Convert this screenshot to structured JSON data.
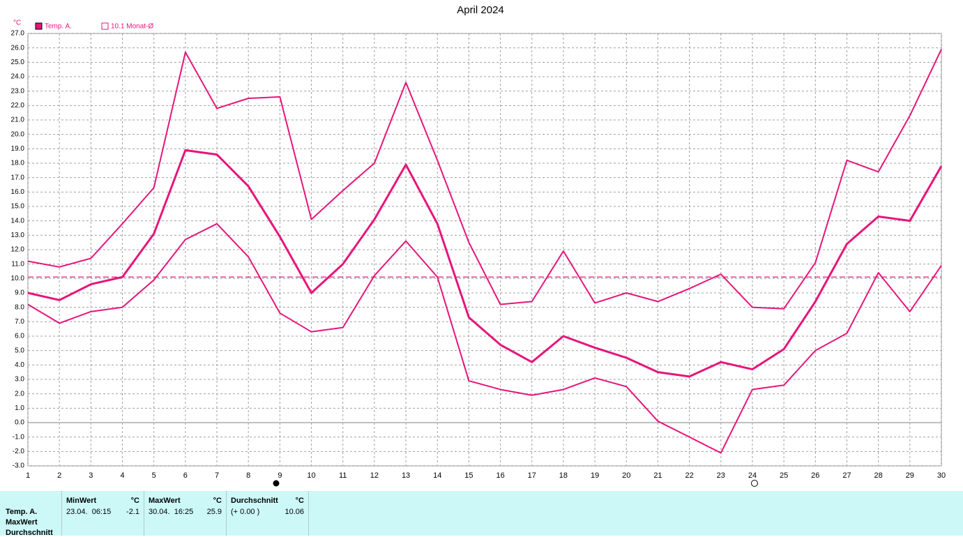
{
  "chart_data": {
    "type": "line",
    "title": "April 2024",
    "y_unit": "°C",
    "x": [
      1,
      2,
      3,
      4,
      5,
      6,
      7,
      8,
      9,
      10,
      11,
      12,
      13,
      14,
      15,
      16,
      17,
      18,
      19,
      20,
      21,
      22,
      23,
      24,
      25,
      26,
      27,
      28,
      29,
      30
    ],
    "xlim": [
      1,
      30
    ],
    "xticks": [
      1,
      2,
      3,
      4,
      5,
      6,
      7,
      8,
      9,
      10,
      11,
      12,
      13,
      14,
      15,
      16,
      17,
      18,
      19,
      20,
      21,
      22,
      23,
      24,
      25,
      26,
      27,
      28,
      29,
      30
    ],
    "ylim": [
      -3,
      27
    ],
    "yticks": [
      {
        "value": -3,
        "label": "-3.0"
      },
      {
        "value": -2,
        "label": "-2.0"
      },
      {
        "value": -1,
        "label": "-1.0"
      },
      {
        "value": 0,
        "label": "0.0"
      },
      {
        "value": 1,
        "label": "1.0"
      },
      {
        "value": 2,
        "label": "2.0"
      },
      {
        "value": 3,
        "label": "3.0"
      },
      {
        "value": 4,
        "label": "4.0"
      },
      {
        "value": 5,
        "label": "5.0"
      },
      {
        "value": 6,
        "label": "6.0"
      },
      {
        "value": 7,
        "label": "7.0"
      },
      {
        "value": 8,
        "label": "8.0"
      },
      {
        "value": 9,
        "label": "9.0"
      },
      {
        "value": 10,
        "label": "10.0"
      },
      {
        "value": 11,
        "label": "11.0"
      },
      {
        "value": 12,
        "label": "12.0"
      },
      {
        "value": 13,
        "label": "13.0"
      },
      {
        "value": 14,
        "label": "14.0"
      },
      {
        "value": 15,
        "label": "15.0"
      },
      {
        "value": 16,
        "label": "16.0"
      },
      {
        "value": 17,
        "label": "17.0"
      },
      {
        "value": 18,
        "label": "18.0"
      },
      {
        "value": 19,
        "label": "19.0"
      },
      {
        "value": 20,
        "label": "20.0"
      },
      {
        "value": 21,
        "label": "21.0"
      },
      {
        "value": 22,
        "label": "22.0"
      },
      {
        "value": 23,
        "label": "23.0"
      },
      {
        "value": 24,
        "label": "24.0"
      },
      {
        "value": 25,
        "label": "25.0"
      },
      {
        "value": 26,
        "label": "26.0"
      },
      {
        "value": 27,
        "label": "27.0"
      }
    ],
    "grid": true,
    "series": [
      {
        "name": "Temp. A.",
        "color": "#e6157a",
        "values": [
          9.0,
          8.5,
          9.6,
          10.1,
          13.1,
          18.9,
          18.6,
          16.4,
          12.9,
          9.0,
          11.0,
          14.1,
          17.9,
          13.8,
          7.3,
          5.4,
          4.2,
          6.0,
          5.2,
          4.5,
          3.5,
          3.2,
          4.2,
          3.7,
          5.1,
          8.4,
          12.4,
          14.3,
          14.0,
          17.8
        ]
      },
      {
        "color": "#e6157a",
        "values": [
          11.2,
          10.8,
          11.4,
          13.8,
          16.3,
          25.7,
          21.8,
          22.5,
          22.6,
          14.1,
          16.1,
          18.0,
          23.6,
          18.2,
          12.5,
          8.2,
          8.4,
          11.9,
          8.3,
          9.0,
          8.4,
          9.3,
          10.3,
          8.0,
          7.9,
          11.1,
          18.2,
          17.4,
          21.3,
          25.9
        ]
      },
      {
        "color": "#e6157a",
        "values": [
          8.2,
          6.9,
          7.7,
          8.0,
          9.9,
          12.7,
          13.8,
          11.5,
          7.6,
          6.3,
          6.6,
          10.2,
          12.6,
          10.1,
          2.9,
          2.3,
          1.9,
          2.3,
          3.1,
          2.5,
          0.1,
          -1.0,
          -2.1,
          2.3,
          2.6,
          5.0,
          6.2,
          10.4,
          7.7,
          10.9
        ]
      }
    ],
    "reference_line": {
      "name": "10.1 Monat-Ø",
      "value": 10.1,
      "color": "#e6157a"
    }
  },
  "stats": {
    "row_labels": [
      "Temp. A.",
      "MaxWert",
      "Durchschnitt"
    ],
    "columns": [
      {
        "header": "MinWert",
        "unit": "°C",
        "when": "23.04.  06:15",
        "value": -2.1
      },
      {
        "header": "MaxWert",
        "unit": "°C",
        "when": "30.04.  16:25",
        "value": 25.9
      },
      {
        "header": "Durchschnitt",
        "unit": "°C",
        "when": "(+ 0.00 )",
        "value": 10.06
      }
    ]
  }
}
